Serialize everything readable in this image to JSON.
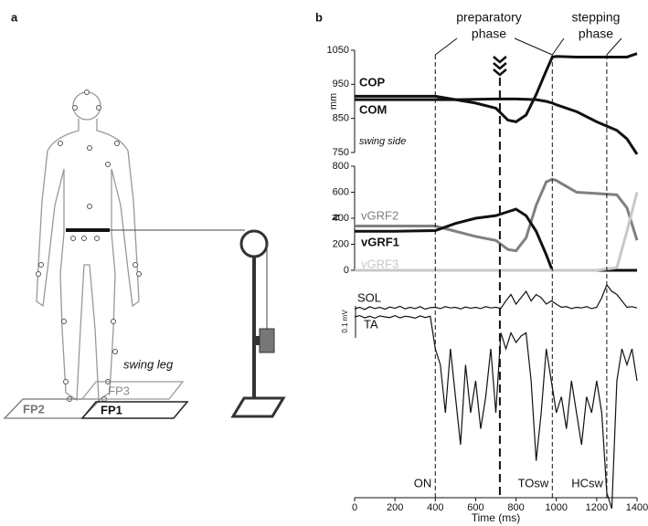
{
  "panel_a": {
    "label": "a",
    "swing_label": "swing leg",
    "plates": [
      "FP2",
      "FP3",
      "FP1"
    ]
  },
  "panel_b": {
    "label": "b",
    "phases": [
      {
        "lines": [
          "preparatory",
          "phase"
        ]
      },
      {
        "lines": [
          "stepping",
          "phase"
        ]
      }
    ],
    "events": [
      {
        "x": 400,
        "label": "ON"
      },
      {
        "x": 720
      },
      {
        "x": 980,
        "label": "TOsw"
      },
      {
        "x": 1250,
        "label": "HCsw"
      }
    ]
  },
  "chart_data": [
    {
      "type": "line",
      "ylabel": "mm",
      "annotation": "swing side",
      "ylim": [
        750,
        1050
      ],
      "yticks": [
        750,
        850,
        950,
        1050
      ],
      "x": [
        0,
        200,
        400,
        500,
        600,
        700,
        760,
        800,
        850,
        900,
        950,
        980,
        1000,
        1100,
        1200,
        1300,
        1350,
        1400
      ],
      "series": [
        {
          "name": "COP",
          "color": "#111111",
          "values": [
            915,
            915,
            915,
            905,
            895,
            880,
            845,
            840,
            860,
            920,
            990,
            1030,
            1032,
            1030,
            1030,
            1030,
            1030,
            1040
          ]
        },
        {
          "name": "COM",
          "color": "#111111",
          "values": [
            905,
            905,
            905,
            905,
            906,
            907,
            907,
            907,
            906,
            905,
            900,
            895,
            890,
            870,
            840,
            815,
            790,
            745
          ]
        }
      ]
    },
    {
      "type": "line",
      "ylabel": "N",
      "ylim": [
        0,
        800
      ],
      "yticks": [
        0,
        200,
        400,
        600,
        800
      ],
      "x": [
        0,
        200,
        400,
        500,
        600,
        700,
        760,
        800,
        850,
        900,
        950,
        980,
        1000,
        1100,
        1200,
        1300,
        1350,
        1400
      ],
      "series": [
        {
          "name": "vGRF2",
          "color": "#808080",
          "values": [
            340,
            340,
            340,
            300,
            260,
            230,
            160,
            150,
            250,
            500,
            680,
            700,
            690,
            600,
            590,
            580,
            480,
            230
          ]
        },
        {
          "name": "vGRF1",
          "color": "#111111",
          "values": [
            300,
            300,
            305,
            360,
            400,
            420,
            450,
            470,
            420,
            300,
            120,
            0,
            0,
            0,
            0,
            0,
            0,
            0
          ]
        },
        {
          "name": "vGRF3",
          "color": "#c8c8c8",
          "values": [
            0,
            0,
            0,
            0,
            0,
            0,
            0,
            0,
            0,
            0,
            0,
            0,
            0,
            0,
            0,
            20,
            300,
            600
          ]
        }
      ]
    },
    {
      "type": "emg",
      "xlabel": "Time (ms)",
      "xlim": [
        0,
        1400
      ],
      "xticks": [
        0,
        200,
        400,
        600,
        800,
        1000,
        1200,
        1400
      ],
      "scale_bar": {
        "value": 0.1,
        "label": "0.1 mV"
      },
      "x": [
        0,
        25,
        50,
        75,
        100,
        125,
        150,
        175,
        200,
        225,
        250,
        275,
        300,
        325,
        350,
        375,
        400,
        425,
        450,
        475,
        500,
        525,
        550,
        575,
        600,
        625,
        650,
        675,
        700,
        725,
        750,
        775,
        800,
        825,
        850,
        875,
        900,
        925,
        950,
        975,
        1000,
        1025,
        1050,
        1075,
        1100,
        1125,
        1150,
        1175,
        1200,
        1225,
        1250,
        1275,
        1300,
        1325,
        1350,
        1375,
        1400
      ],
      "series": [
        {
          "name": "SOL",
          "color": "#111111",
          "values": [
            0.005,
            0.01,
            0.003,
            0.012,
            0.006,
            0.01,
            0.004,
            0.011,
            0.007,
            0.013,
            0.005,
            0.01,
            0.006,
            0.012,
            0.004,
            0.009,
            0.01,
            0.006,
            0.012,
            0.008,
            0.01,
            0.005,
            0.011,
            0.007,
            0.01,
            0.006,
            0.012,
            0.008,
            0.01,
            0.007,
            0.03,
            0.05,
            0.02,
            0.04,
            0.06,
            0.03,
            0.05,
            0.04,
            0.02,
            0.03,
            0.02,
            0.01,
            0.012,
            0.006,
            0.01,
            0.008,
            0.012,
            0.006,
            0.01,
            0.04,
            0.08,
            0.06,
            0.05,
            0.03,
            0.01,
            0.012,
            0.008
          ]
        },
        {
          "name": "TA",
          "color": "#111111",
          "values": [
            0,
            0.004,
            -0.003,
            0.002,
            -0.004,
            0.003,
            0,
            -0.002,
            0.004,
            -0.003,
            0.002,
            0,
            -0.004,
            0.003,
            -0.002,
            0.002,
            -0.1,
            -0.15,
            -0.3,
            -0.1,
            -0.25,
            -0.4,
            -0.15,
            -0.3,
            -0.2,
            -0.35,
            -0.25,
            -0.1,
            -0.3,
            -0.05,
            -0.1,
            -0.05,
            -0.08,
            -0.06,
            -0.05,
            -0.2,
            -0.45,
            -0.3,
            -0.1,
            -0.2,
            -0.3,
            -0.25,
            -0.35,
            -0.2,
            -0.3,
            -0.4,
            -0.25,
            -0.3,
            -0.2,
            -0.3,
            -0.55,
            -0.6,
            -0.2,
            -0.1,
            -0.15,
            -0.1,
            -0.2
          ]
        }
      ]
    }
  ]
}
